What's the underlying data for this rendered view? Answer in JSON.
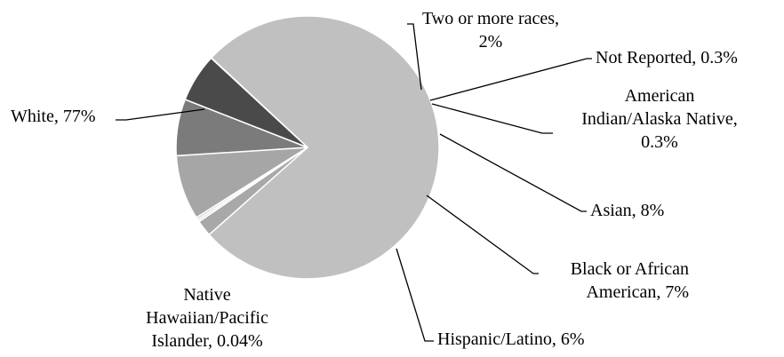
{
  "chart_data": {
    "type": "pie",
    "title": "",
    "legend": "none",
    "slices": [
      {
        "label_lines": [
          "White, 77%"
        ],
        "value": 77,
        "color": "#c0c0c0"
      },
      {
        "label_lines": [
          "Two or more races,",
          "2%"
        ],
        "value": 2,
        "color": "#a8a8a8"
      },
      {
        "label_lines": [
          "Not Reported, 0.3%"
        ],
        "value": 0.3,
        "color": "#e3e3e3"
      },
      {
        "label_lines": [
          "American",
          "Indian/Alaska Native,",
          "0.3%"
        ],
        "value": 0.3,
        "color": "#d2d2d2"
      },
      {
        "label_lines": [
          "Asian, 8%"
        ],
        "value": 8,
        "color": "#a6a6a6"
      },
      {
        "label_lines": [
          "Black or African",
          "American, 7%"
        ],
        "value": 7,
        "color": "#7b7b7b"
      },
      {
        "label_lines": [
          "Hispanic/Latino, 6%"
        ],
        "value": 6,
        "color": "#4a4a4a"
      },
      {
        "label_lines": [
          "Native",
          "Hawaiian/Pacific",
          "Islander, 0.04%"
        ],
        "value": 0.04,
        "color": "#b9b9b9"
      }
    ]
  }
}
